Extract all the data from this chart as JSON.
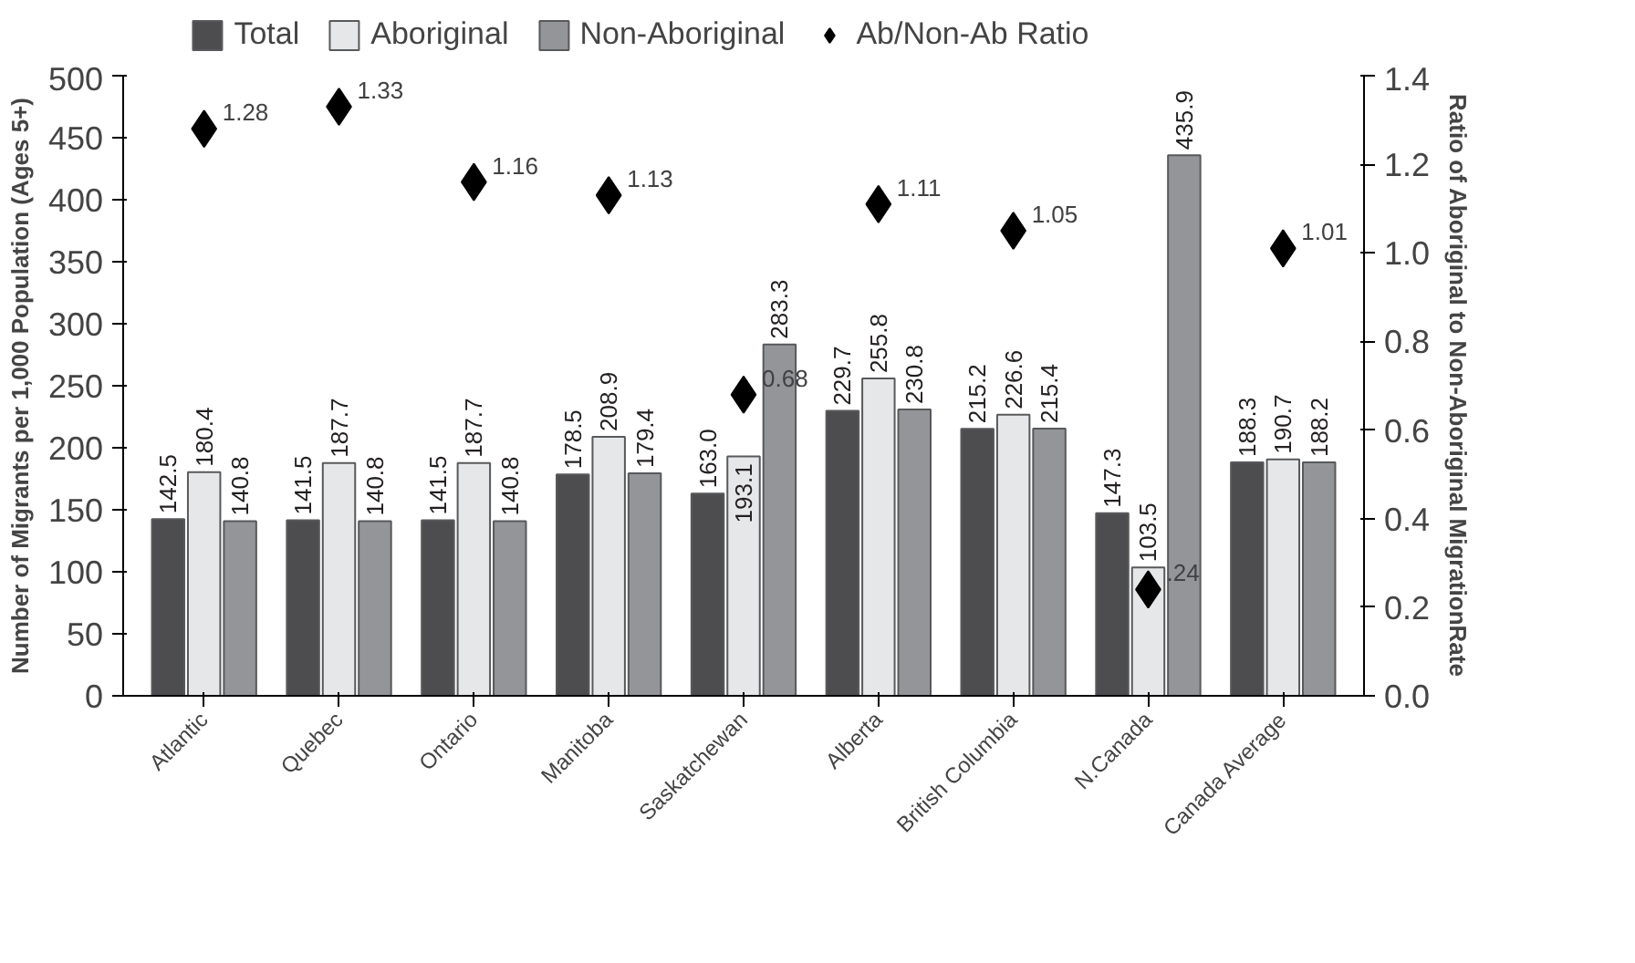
{
  "chart_data": {
    "type": "bar",
    "ylabel": "Number of Migrants per 1,000 Population (Ages 5+)",
    "y2label": "Ratio of Aboriginal to Non-Aboriginal MigrationRate",
    "categories": [
      "Atlantic",
      "Quebec",
      "Ontario",
      "Manitoba",
      "Saskatchewan",
      "Alberta",
      "British Columbia",
      "N.Canada",
      "Canada Average"
    ],
    "series": [
      {
        "name": "Total",
        "color": "#4d4d4f",
        "values": [
          142.5,
          141.5,
          141.5,
          178.5,
          163.0,
          229.7,
          215.2,
          147.3,
          188.3
        ],
        "value_labels": [
          "142.5",
          "141.5",
          "141.5",
          "178.5",
          "163.0",
          "229.7",
          "215.2",
          "147.3",
          "188.3"
        ]
      },
      {
        "name": "Aboriginal",
        "color": "#e6e7e8",
        "values": [
          180.4,
          187.7,
          187.7,
          208.9,
          193.1,
          255.8,
          226.6,
          103.5,
          190.7
        ],
        "value_labels": [
          "180.4",
          "187.7",
          "187.7",
          "208.9",
          "193.1",
          "255.8",
          "226.6",
          "103.5",
          "190.7"
        ]
      },
      {
        "name": "Non-Aboriginal",
        "color": "#939598",
        "values": [
          140.8,
          140.8,
          140.8,
          179.4,
          283.3,
          230.8,
          215.4,
          435.9,
          188.2
        ],
        "value_labels": [
          "140.8",
          "140.8",
          "140.8",
          "179.4",
          "283.3",
          "230.8",
          "215.4",
          "435.9",
          "188.2"
        ]
      },
      {
        "name": "Ab/Non-Ab Ratio",
        "type": "scatter",
        "axis": "y2",
        "marker": "diamond",
        "color": "#000000",
        "values": [
          1.28,
          1.33,
          1.16,
          1.13,
          0.68,
          1.11,
          1.05,
          0.24,
          1.01
        ],
        "value_labels": [
          "1.28",
          "1.33",
          "1.16",
          "1.13",
          "0.68",
          "1.11",
          "1.05",
          ".24",
          "1.01"
        ]
      }
    ],
    "ylim": [
      0,
      500
    ],
    "yticks": [
      0,
      50,
      100,
      150,
      200,
      250,
      300,
      350,
      400,
      450,
      500
    ],
    "y2lim": [
      0,
      1.4
    ],
    "y2ticks": [
      {
        "value": 0,
        "label": "0.0"
      },
      {
        "value": 0.2,
        "label": "0.2"
      },
      {
        "value": 0.4,
        "label": "0.4"
      },
      {
        "value": 0.6,
        "label": "0.6"
      },
      {
        "value": 0.8,
        "label": "0.8"
      },
      {
        "value": 1.0,
        "label": "1.0"
      },
      {
        "value": 1.2,
        "label": "1.2"
      },
      {
        "value": 1.4,
        "label": "1.4"
      }
    ],
    "legend": "top",
    "grid": false
  }
}
